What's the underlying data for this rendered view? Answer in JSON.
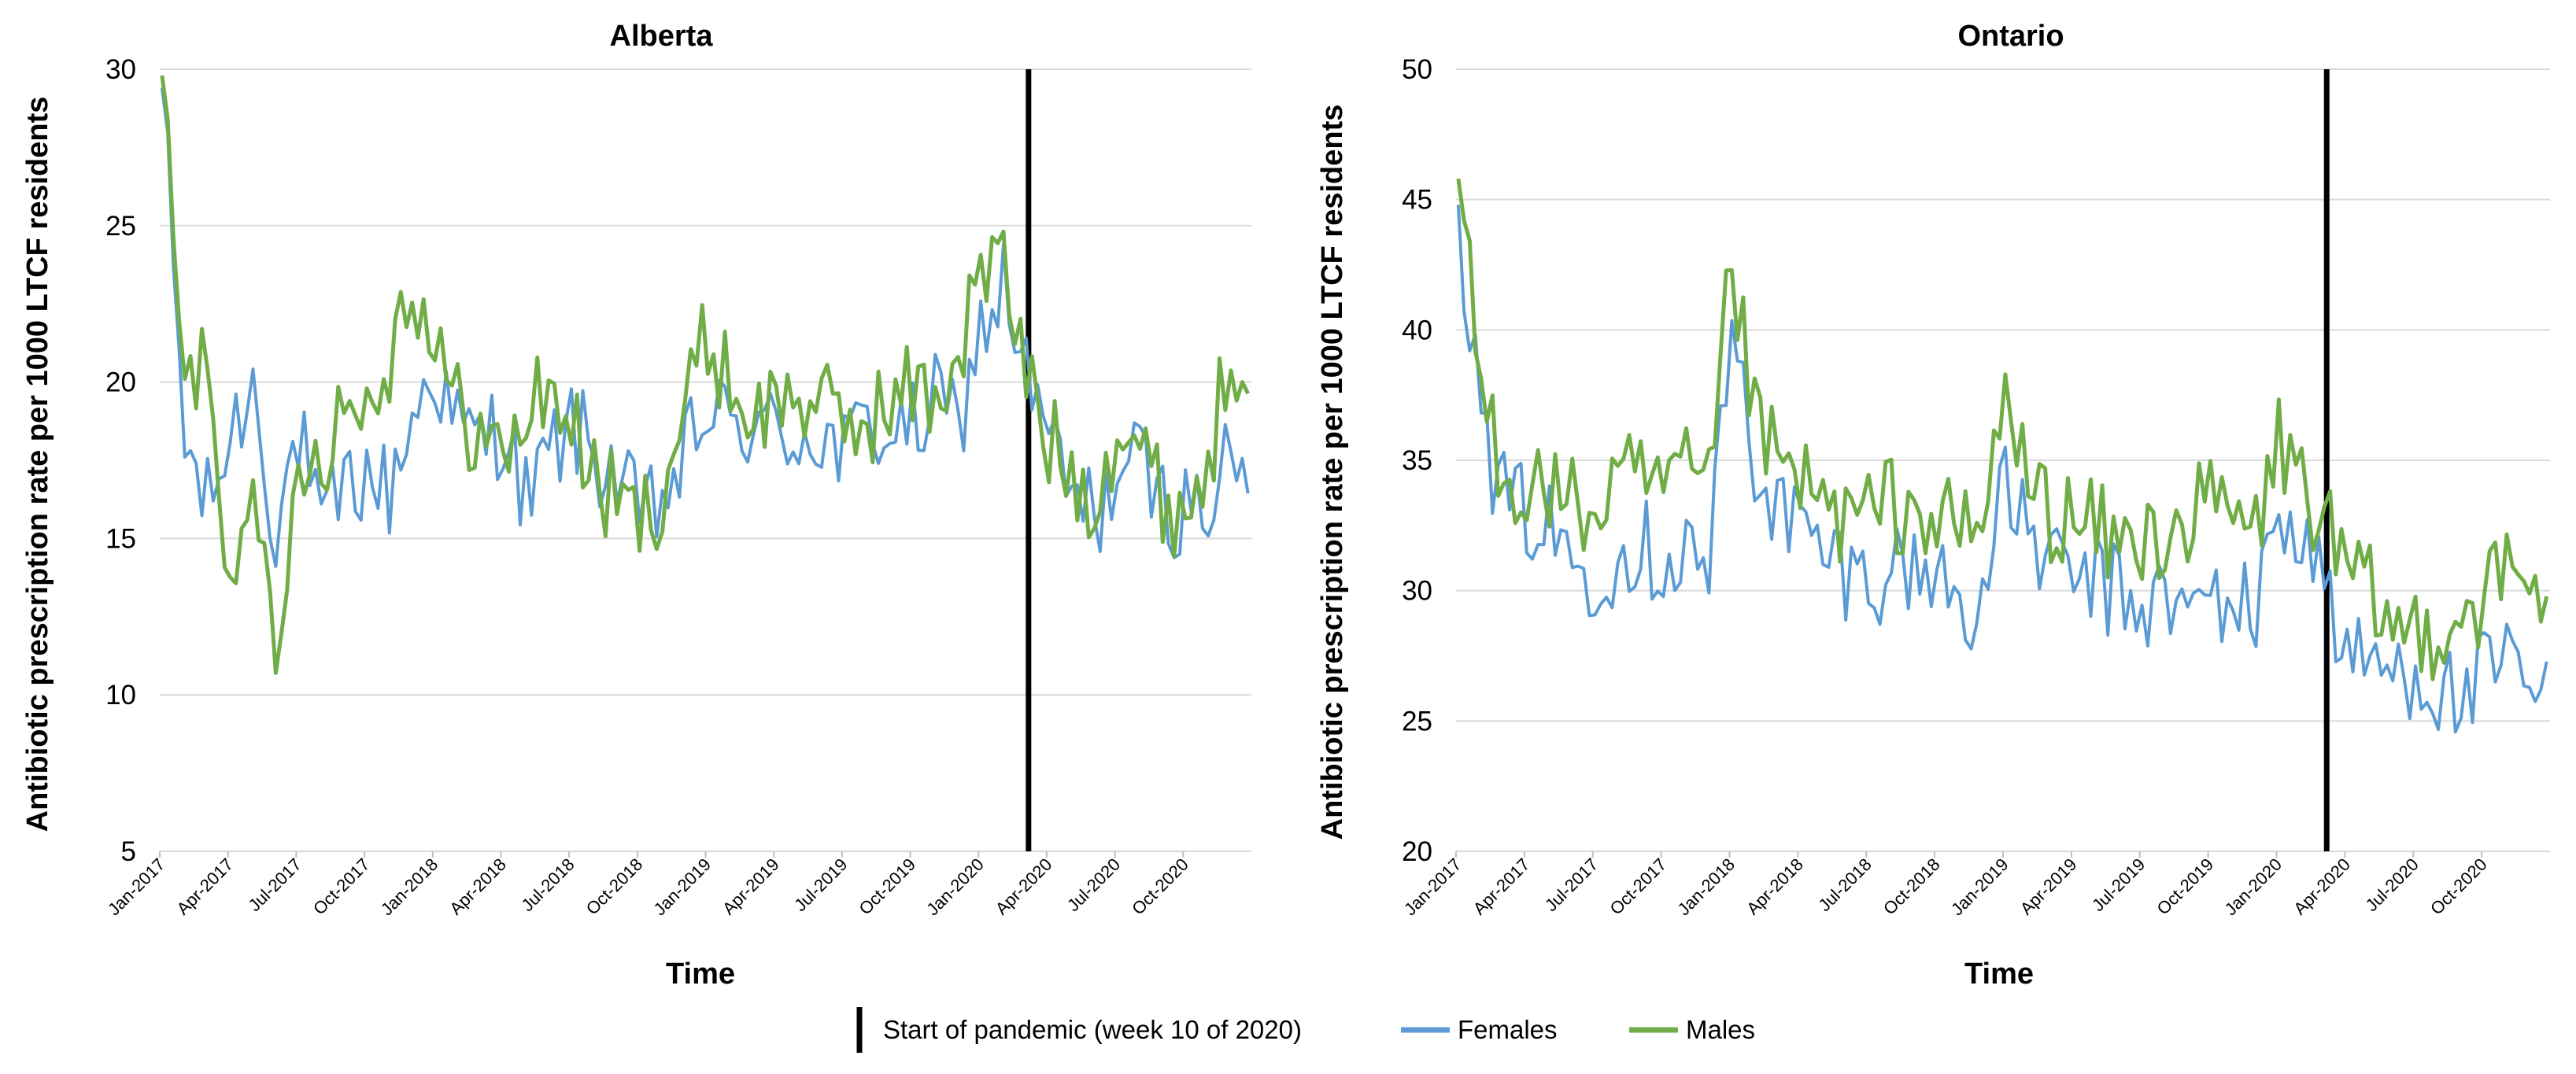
{
  "colors": {
    "females": "#5b9bd5",
    "males": "#70ad47",
    "pandemic": "#000000",
    "grid": "#d9d9d9"
  },
  "legend": [
    {
      "name": "Start of pandemic (week 10 of 2020)",
      "color": "#000000",
      "kind": "vline"
    },
    {
      "name": "Females",
      "color": "#5b9bd5",
      "kind": "line"
    },
    {
      "name": "Males",
      "color": "#70ad47",
      "kind": "line"
    }
  ],
  "chart_data": [
    {
      "type": "line",
      "title": "Alberta",
      "xlabel": "Time",
      "ylabel": "Antibiotic prescription rate per 1000 LTCF residents",
      "ylim": [
        5,
        30
      ],
      "yticks": [
        5,
        10,
        15,
        20,
        25,
        30
      ],
      "grid": true,
      "x_range": [
        "2017-01",
        "2020-12"
      ],
      "x_tick_labels": [
        "Jan-2017",
        "Apr-2017",
        "Jul-2017",
        "Oct-2017",
        "Jan-2018",
        "Apr-2018",
        "Jul-2018",
        "Oct-2018",
        "Jan-2019",
        "Apr-2019",
        "Jul-2019",
        "Oct-2019",
        "Jan-2020",
        "Apr-2020",
        "Jul-2020",
        "Oct-2020"
      ],
      "pandemic_start": "2020-03",
      "series": [
        {
          "name": "Females",
          "color": "#5b9bd5",
          "x": [
            "2017-01",
            "2017-02",
            "2017-03",
            "2017-04",
            "2017-05",
            "2017-06",
            "2017-07",
            "2017-08",
            "2017-09",
            "2017-10",
            "2017-11",
            "2017-12",
            "2018-01",
            "2018-02",
            "2018-03",
            "2018-04",
            "2018-05",
            "2018-06",
            "2018-07",
            "2018-08",
            "2018-09",
            "2018-10",
            "2018-11",
            "2018-12",
            "2019-01",
            "2019-02",
            "2019-03",
            "2019-04",
            "2019-05",
            "2019-06",
            "2019-07",
            "2019-08",
            "2019-09",
            "2019-10",
            "2019-11",
            "2019-12",
            "2020-01",
            "2020-02",
            "2020-03",
            "2020-04",
            "2020-05",
            "2020-06",
            "2020-07",
            "2020-08",
            "2020-09",
            "2020-10",
            "2020-11",
            "2020-12"
          ],
          "values": [
            29.4,
            18.0,
            16.0,
            18.2,
            20.0,
            15.3,
            18.4,
            15.0,
            16.6,
            17.0,
            16.5,
            18.8,
            20.5,
            18.4,
            18.2,
            18.6,
            16.2,
            17.5,
            18.7,
            17.6,
            17.1,
            15.5,
            16.2,
            17.5,
            19.2,
            18.4,
            18.8,
            18.2,
            18.4,
            18.3,
            17.6,
            18.7,
            18.4,
            18.4,
            19.3,
            18.6,
            21.6,
            23.1,
            20.2,
            18.1,
            16.3,
            15.7,
            17.0,
            17.4,
            16.1,
            15.9,
            16.2,
            17.3
          ]
        },
        {
          "name": "Males",
          "color": "#70ad47",
          "x": [
            "2017-01",
            "2017-02",
            "2017-03",
            "2017-04",
            "2017-05",
            "2017-06",
            "2017-07",
            "2017-08",
            "2017-09",
            "2017-10",
            "2017-11",
            "2017-12",
            "2018-01",
            "2018-02",
            "2018-03",
            "2018-04",
            "2018-05",
            "2018-06",
            "2018-07",
            "2018-08",
            "2018-09",
            "2018-10",
            "2018-11",
            "2018-12",
            "2019-01",
            "2019-02",
            "2019-03",
            "2019-04",
            "2019-05",
            "2019-06",
            "2019-07",
            "2019-08",
            "2019-09",
            "2019-10",
            "2019-11",
            "2019-12",
            "2020-01",
            "2020-02",
            "2020-03",
            "2020-04",
            "2020-05",
            "2020-06",
            "2020-07",
            "2020-08",
            "2020-09",
            "2020-10",
            "2020-11",
            "2020-12"
          ],
          "values": [
            29.8,
            19.3,
            21.4,
            13.1,
            18.4,
            9.6,
            17.8,
            17.7,
            19.4,
            19.2,
            20.9,
            23.5,
            21.0,
            19.1,
            18.4,
            17.4,
            19.0,
            19.9,
            18.7,
            16.8,
            16.1,
            15.6,
            16.5,
            19.3,
            21.4,
            20.0,
            18.8,
            19.4,
            19.7,
            19.1,
            18.6,
            18.9,
            19.2,
            19.8,
            19.5,
            20.8,
            23.6,
            23.6,
            20.2,
            18.1,
            17.1,
            16.4,
            18.7,
            17.9,
            16.2,
            15.9,
            17.4,
            21.0
          ]
        }
      ]
    },
    {
      "type": "line",
      "title": "Ontario",
      "xlabel": "Time",
      "ylabel": "Antibiotic prescription rate per 1000 LTCF residents",
      "ylim": [
        20,
        50
      ],
      "yticks": [
        20,
        25,
        30,
        35,
        40,
        45,
        50
      ],
      "grid": true,
      "x_range": [
        "2017-01",
        "2020-12"
      ],
      "x_tick_labels": [
        "Jan-2017",
        "Apr-2017",
        "Jul-2017",
        "Oct-2017",
        "Jan-2018",
        "Apr-2018",
        "Jul-2018",
        "Oct-2018",
        "Jan-2019",
        "Apr-2019",
        "Jul-2019",
        "Oct-2019",
        "Jan-2020",
        "Apr-2020",
        "Jul-2020",
        "Oct-2020"
      ],
      "pandemic_start": "2020-03",
      "series": [
        {
          "name": "Females",
          "color": "#5b9bd5",
          "x": [
            "2017-01",
            "2017-02",
            "2017-03",
            "2017-04",
            "2017-05",
            "2017-06",
            "2017-07",
            "2017-08",
            "2017-09",
            "2017-10",
            "2017-11",
            "2017-12",
            "2018-01",
            "2018-02",
            "2018-03",
            "2018-04",
            "2018-05",
            "2018-06",
            "2018-07",
            "2018-08",
            "2018-09",
            "2018-10",
            "2018-11",
            "2018-12",
            "2019-01",
            "2019-02",
            "2019-03",
            "2019-04",
            "2019-05",
            "2019-06",
            "2019-07",
            "2019-08",
            "2019-09",
            "2019-10",
            "2019-11",
            "2019-12",
            "2020-01",
            "2020-02",
            "2020-03",
            "2020-04",
            "2020-05",
            "2020-06",
            "2020-07",
            "2020-08",
            "2020-09",
            "2020-10",
            "2020-11",
            "2020-12"
          ],
          "values": [
            44.8,
            36.0,
            33.4,
            33.0,
            32.3,
            31.3,
            30.8,
            31.4,
            31.8,
            31.2,
            31.7,
            30.9,
            40.0,
            35.0,
            33.2,
            32.4,
            31.4,
            30.8,
            30.4,
            30.9,
            30.8,
            30.7,
            29.6,
            29.5,
            33.9,
            32.4,
            30.8,
            30.5,
            30.3,
            29.8,
            29.4,
            29.6,
            29.1,
            29.8,
            29.6,
            29.0,
            33.4,
            31.9,
            30.7,
            27.0,
            27.4,
            26.8,
            27.1,
            26.2,
            25.7,
            26.6,
            27.0,
            26.2
          ]
        },
        {
          "name": "Males",
          "color": "#70ad47",
          "x": [
            "2017-01",
            "2017-02",
            "2017-03",
            "2017-04",
            "2017-05",
            "2017-06",
            "2017-07",
            "2017-08",
            "2017-09",
            "2017-10",
            "2017-11",
            "2017-12",
            "2018-01",
            "2018-02",
            "2018-03",
            "2018-04",
            "2018-05",
            "2018-06",
            "2018-07",
            "2018-08",
            "2018-09",
            "2018-10",
            "2018-11",
            "2018-12",
            "2019-01",
            "2019-02",
            "2019-03",
            "2019-04",
            "2019-05",
            "2019-06",
            "2019-07",
            "2019-08",
            "2019-09",
            "2019-10",
            "2019-11",
            "2019-12",
            "2020-01",
            "2020-02",
            "2020-03",
            "2020-04",
            "2020-05",
            "2020-06",
            "2020-07",
            "2020-08",
            "2020-09",
            "2020-10",
            "2020-11",
            "2020-12"
          ],
          "values": [
            45.8,
            37.6,
            34.7,
            33.9,
            34.0,
            33.2,
            32.9,
            34.2,
            34.0,
            33.9,
            34.3,
            33.6,
            42.6,
            36.5,
            34.7,
            34.3,
            33.1,
            32.8,
            32.8,
            33.4,
            33.0,
            32.8,
            32.1,
            32.4,
            37.6,
            34.1,
            33.0,
            32.6,
            32.3,
            31.7,
            31.8,
            32.4,
            32.6,
            33.4,
            32.8,
            32.2,
            35.8,
            34.2,
            32.5,
            30.4,
            29.8,
            28.4,
            28.6,
            28.5,
            29.3,
            29.7,
            30.7,
            30.1
          ]
        }
      ]
    }
  ]
}
